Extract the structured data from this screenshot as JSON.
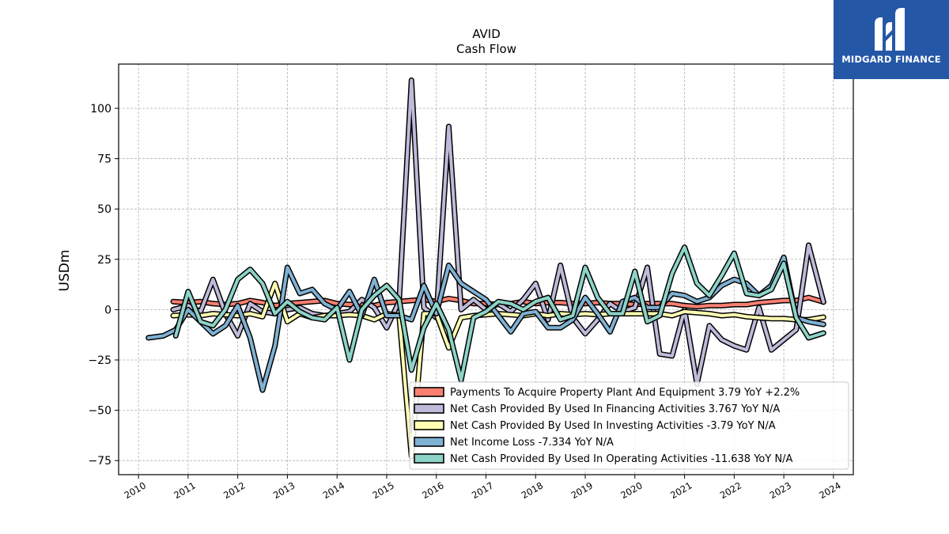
{
  "brand": {
    "name": "MIDGARD FINANCE",
    "background": "#2557a7"
  },
  "chart_data": {
    "type": "line",
    "title": "AVID",
    "subtitle": "Cash Flow",
    "xlabel": "",
    "ylabel": "USDm",
    "xlim": [
      2009.6,
      2024.4
    ],
    "ylim": [
      -82,
      122
    ],
    "x_ticks": [
      2010,
      2011,
      2012,
      2013,
      2014,
      2015,
      2016,
      2017,
      2018,
      2019,
      2020,
      2021,
      2022,
      2023,
      2024
    ],
    "x_tick_labels": [
      "2010",
      "2011",
      "2012",
      "2013",
      "2014",
      "2015",
      "2016",
      "2017",
      "2018",
      "2019",
      "2020",
      "2021",
      "2022",
      "2023",
      "2024"
    ],
    "y_ticks": [
      -75,
      -50,
      -25,
      0,
      25,
      50,
      75,
      100
    ],
    "y_tick_labels": [
      "−75",
      "−50",
      "−25",
      "0",
      "25",
      "50",
      "75",
      "100"
    ],
    "grid": true,
    "legend_position": "lower-right",
    "series": [
      {
        "name": "Payments To Acquire Property Plant And Equipment",
        "legend_label": "Payments To Acquire Property Plant And Equipment  3.79 YoY +2.2%",
        "color": "#fb8072",
        "x": [
          2010.7,
          2011.0,
          2011.25,
          2011.5,
          2011.75,
          2012.0,
          2012.25,
          2012.5,
          2012.75,
          2013.0,
          2013.25,
          2013.5,
          2013.75,
          2014.0,
          2014.25,
          2014.5,
          2014.75,
          2015.0,
          2015.25,
          2015.5,
          2015.75,
          2016.0,
          2016.25,
          2016.5,
          2016.75,
          2017.0,
          2017.25,
          2017.5,
          2017.75,
          2018.0,
          2018.25,
          2018.5,
          2018.75,
          2019.0,
          2019.25,
          2019.5,
          2019.75,
          2020.0,
          2020.25,
          2020.5,
          2020.75,
          2021.0,
          2021.25,
          2021.5,
          2021.75,
          2022.0,
          2022.25,
          2022.5,
          2022.75,
          2023.0,
          2023.25,
          2023.5,
          2023.8
        ],
        "y": [
          4,
          3.5,
          4,
          3,
          2.5,
          3,
          4.5,
          3.5,
          2,
          3,
          3.5,
          4,
          4.5,
          3,
          2.5,
          3,
          2,
          3.5,
          4,
          4.5,
          5,
          4,
          5.5,
          4.5,
          3,
          3,
          2.5,
          3,
          4,
          3,
          3.5,
          3.5,
          3,
          3,
          3.5,
          3,
          3,
          2.5,
          3,
          3,
          3,
          2,
          1.5,
          2,
          2,
          2.5,
          2.5,
          3.5,
          4,
          4.5,
          4.5,
          6,
          3.79
        ]
      },
      {
        "name": "Net Cash Provided By Used In Financing Activities",
        "legend_label": "Net Cash Provided By Used In Financing Activities  3.767 YoY N/A",
        "color": "#bebada",
        "x": [
          2010.7,
          2011.0,
          2011.25,
          2011.5,
          2011.75,
          2012.0,
          2012.25,
          2012.5,
          2012.75,
          2013.0,
          2013.25,
          2013.5,
          2013.75,
          2014.0,
          2014.25,
          2014.5,
          2014.75,
          2015.0,
          2015.25,
          2015.5,
          2015.75,
          2016.0,
          2016.25,
          2016.5,
          2016.75,
          2017.0,
          2017.25,
          2017.5,
          2017.75,
          2018.0,
          2018.25,
          2018.5,
          2018.75,
          2019.0,
          2019.25,
          2019.5,
          2019.75,
          2020.0,
          2020.25,
          2020.5,
          2020.75,
          2021.0,
          2021.25,
          2021.5,
          2021.75,
          2022.0,
          2022.25,
          2022.5,
          2022.75,
          2023.0,
          2023.25,
          2023.5,
          2023.8
        ],
        "y": [
          0,
          2,
          -1,
          15,
          -2,
          -13,
          3,
          -1,
          -2,
          0,
          1,
          -2,
          -3,
          -2,
          -1,
          5,
          1,
          -9,
          4,
          114,
          1,
          -4,
          91,
          0,
          5,
          0,
          3,
          -1,
          5,
          13,
          -5,
          22,
          -4,
          -12,
          -5,
          3,
          -1,
          1,
          21,
          -22,
          -23,
          0,
          -37,
          -8,
          -15,
          -18,
          -20,
          1,
          -20,
          -15,
          -10,
          32,
          3.767
        ]
      },
      {
        "name": "Net Cash Provided By Used In Investing Activities",
        "legend_label": "Net Cash Provided By Used In Investing Activities  -3.79 YoY N/A",
        "color": "#ffffb3",
        "x": [
          2010.7,
          2011.0,
          2011.25,
          2011.5,
          2011.75,
          2012.0,
          2012.25,
          2012.5,
          2012.75,
          2013.0,
          2013.25,
          2013.5,
          2013.75,
          2014.0,
          2014.25,
          2014.5,
          2014.75,
          2015.0,
          2015.25,
          2015.5,
          2015.75,
          2016.0,
          2016.25,
          2016.5,
          2016.75,
          2017.0,
          2017.25,
          2017.5,
          2017.75,
          2018.0,
          2018.25,
          2018.5,
          2018.75,
          2019.0,
          2019.25,
          2019.5,
          2019.75,
          2020.0,
          2020.25,
          2020.5,
          2020.75,
          2021.0,
          2021.25,
          2021.5,
          2021.75,
          2022.0,
          2022.25,
          2022.5,
          2022.75,
          2023.0,
          2023.25,
          2023.5,
          2023.8
        ],
        "y": [
          -3,
          -2.5,
          -3,
          -2,
          -2.5,
          -3,
          -2,
          -3.5,
          13,
          -6,
          -2,
          -4,
          -3,
          -3,
          -2.5,
          -3,
          -5,
          -2,
          -3,
          -73,
          -2,
          -2,
          -19,
          -4,
          -3,
          -2.5,
          -2,
          -2.5,
          -3,
          -2,
          -3,
          -2,
          -2.5,
          -2,
          -2.5,
          -2,
          -2,
          -2,
          -2,
          -2,
          -3,
          -1,
          -1.5,
          -2,
          -3,
          -2.5,
          -3.5,
          -4,
          -4.5,
          -4.5,
          -5,
          -5,
          -3.79
        ]
      },
      {
        "name": "Net Income Loss",
        "legend_label": "Net Income Loss  -7.334 YoY N/A",
        "color": "#80b1d3",
        "x": [
          2010.2,
          2010.5,
          2010.75,
          2011.0,
          2011.25,
          2011.5,
          2011.75,
          2012.0,
          2012.25,
          2012.5,
          2012.75,
          2013.0,
          2013.25,
          2013.5,
          2013.75,
          2014.0,
          2014.25,
          2014.5,
          2014.75,
          2015.0,
          2015.25,
          2015.5,
          2015.75,
          2016.0,
          2016.25,
          2016.5,
          2016.75,
          2017.0,
          2017.25,
          2017.5,
          2017.75,
          2018.0,
          2018.25,
          2018.5,
          2018.75,
          2019.0,
          2019.25,
          2019.5,
          2019.75,
          2020.0,
          2020.25,
          2020.5,
          2020.75,
          2021.0,
          2021.25,
          2021.5,
          2021.75,
          2022.0,
          2022.25,
          2022.5,
          2022.75,
          2023.0,
          2023.25,
          2023.5,
          2023.8
        ],
        "y": [
          -14,
          -13,
          -10,
          0,
          -6,
          -12,
          -8,
          2,
          -14,
          -40,
          -18,
          21,
          8,
          10,
          3,
          0,
          9,
          -3,
          15,
          -3,
          -3,
          -5,
          12,
          -2,
          22,
          13,
          9,
          5,
          -3,
          -11,
          -2,
          -1,
          -9,
          -9,
          -5,
          6,
          -2,
          -11,
          4,
          6,
          1,
          1,
          8,
          7,
          4,
          6,
          12,
          15,
          13,
          7,
          12,
          26,
          -4,
          -6,
          -7.334
        ]
      },
      {
        "name": "Net Cash Provided By Used In Operating Activities",
        "legend_label": "Net Cash Provided By Used In Operating Activities  -11.638 YoY N/A",
        "color": "#8dd3c7",
        "x": [
          2010.75,
          2011.0,
          2011.25,
          2011.5,
          2011.75,
          2012.0,
          2012.25,
          2012.5,
          2012.75,
          2013.0,
          2013.25,
          2013.5,
          2013.75,
          2014.0,
          2014.25,
          2014.5,
          2014.75,
          2015.0,
          2015.25,
          2015.5,
          2015.75,
          2016.0,
          2016.25,
          2016.5,
          2016.75,
          2017.0,
          2017.25,
          2017.5,
          2017.75,
          2018.0,
          2018.25,
          2018.5,
          2018.75,
          2019.0,
          2019.25,
          2019.5,
          2019.75,
          2020.0,
          2020.25,
          2020.5,
          2020.75,
          2021.0,
          2021.25,
          2021.5,
          2021.75,
          2022.0,
          2022.25,
          2022.5,
          2022.75,
          2023.0,
          2023.25,
          2023.5,
          2023.8
        ],
        "y": [
          -13,
          9,
          -6,
          -8,
          0,
          15,
          20,
          13,
          -2,
          4,
          -1,
          -4,
          -5,
          1,
          -25,
          0,
          7,
          12,
          5,
          -30,
          -9,
          3,
          -10,
          -35,
          -4,
          -1,
          4,
          3,
          0,
          4,
          6,
          -5,
          -3,
          21,
          6,
          -2,
          -2,
          19,
          -6,
          -3,
          18,
          31,
          13,
          7,
          17,
          28,
          8,
          7,
          10,
          23,
          -4,
          -14,
          -11.638
        ]
      }
    ]
  }
}
